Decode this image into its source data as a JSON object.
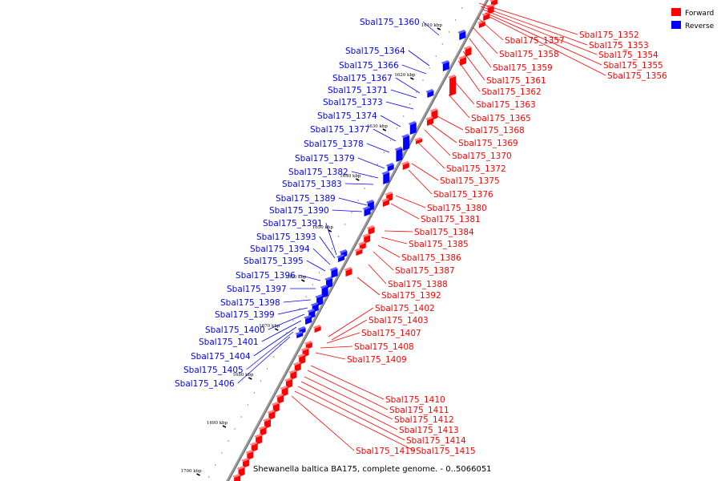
{
  "caption": "Shewanella baltica BA175, complete genome. - 0..5066051",
  "legend": {
    "forward": {
      "label": "Forward",
      "color": "#ff0000"
    },
    "reverse": {
      "label": "Reverse",
      "color": "#0000ff"
    }
  },
  "ticks": [
    "1610 kbp",
    "1620 kbp",
    "1630 kbp",
    "1640 kbp",
    "1650 kbp",
    "1660 kbp",
    "1670 kbp",
    "1680 kbp",
    "1690 kbp",
    "1700 kbp"
  ],
  "forward_genes": [
    "Sbal175_1352",
    "Sbal175_1353",
    "Sbal175_1354",
    "Sbal175_1355",
    "Sbal175_1356",
    "Sbal175_1357",
    "Sbal175_1358",
    "Sbal175_1359",
    "Sbal175_1361",
    "Sbal175_1362",
    "Sbal175_1363",
    "Sbal175_1365",
    "Sbal175_1368",
    "Sbal175_1369",
    "Sbal175_1370",
    "Sbal175_1372",
    "Sbal175_1375",
    "Sbal175_1376",
    "Sbal175_1380",
    "Sbal175_1381",
    "Sbal175_1384",
    "Sbal175_1385",
    "Sbal175_1386",
    "Sbal175_1387",
    "Sbal175_1388",
    "Sbal175_1392",
    "Sbal175_1402",
    "Sbal175_1403",
    "Sbal175_1407",
    "Sbal175_1408",
    "Sbal175_1409",
    "Sbal175_1410",
    "Sbal175_1411",
    "Sbal175_1412",
    "Sbal175_1413",
    "Sbal175_1414",
    "Sbal175_1415",
    "Sbal175_1419"
  ],
  "reverse_genes": [
    "Sbal175_1360",
    "Sbal175_1364",
    "Sbal175_1366",
    "Sbal175_1367",
    "Sbal175_1371",
    "Sbal175_1373",
    "Sbal175_1374",
    "Sbal175_1377",
    "Sbal175_1378",
    "Sbal175_1379",
    "Sbal175_1382",
    "Sbal175_1383",
    "Sbal175_1389",
    "Sbal175_1390",
    "Sbal175_1391",
    "Sbal175_1393",
    "Sbal175_1394",
    "Sbal175_1395",
    "Sbal175_1396",
    "Sbal175_1397",
    "Sbal175_1398",
    "Sbal175_1399",
    "Sbal175_1400",
    "Sbal175_1401",
    "Sbal175_1404",
    "Sbal175_1405",
    "Sbal175_1406"
  ]
}
